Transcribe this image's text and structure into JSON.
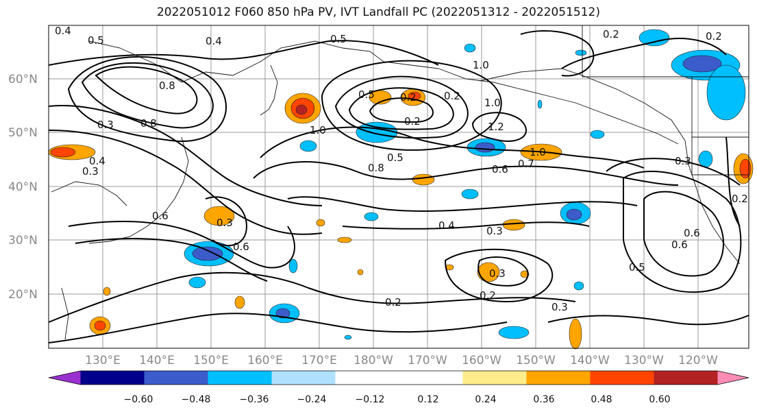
{
  "title": "2022051012 F060 850 hPa PV, IVT Landfall PC (2022051312 - 2022051512)",
  "lat_labels": [
    "60°N",
    "50°N",
    "40°N",
    "30°N",
    "20°N"
  ],
  "lon_labels": [
    "130°E",
    "140°E",
    "150°E",
    "160°E",
    "170°E",
    "180°W",
    "170°W",
    "160°W",
    "150°W",
    "140°W",
    "130°W",
    "120°W"
  ],
  "colorbar": {
    "colors": [
      "#9b30d0",
      "#00008b",
      "#3c5ccc",
      "#00bfff",
      "#b0e2ff",
      "#ffffff",
      "#ffffff",
      "#ffec8b",
      "#ffa500",
      "#ff4500",
      "#b22222",
      "#ff8cb4"
    ],
    "ticks": [
      "−0.60",
      "−0.48",
      "−0.36",
      "−0.24",
      "−0.12",
      "0.12",
      "0.24",
      "0.36",
      "0.48",
      "0.60"
    ]
  },
  "contour_labels": [
    "0.4",
    "0.5",
    "0.4",
    "0.5",
    "0.2",
    "0.2",
    "0.3",
    "0.8",
    "0.8",
    "0.3",
    "0.4",
    "0.2",
    "0.5",
    "0.2",
    "1.0",
    "0.5",
    "0.2",
    "1.0",
    "1.2",
    "1.0",
    "0.7",
    "0.6",
    "0.8",
    "1.0",
    "0.6",
    "0.3",
    "0.6",
    "0.4",
    "0.3",
    "0.3",
    "0.2",
    "0.3",
    "0.2",
    "0.5",
    "0.6",
    "0.6",
    "0.3",
    "0.2"
  ]
}
